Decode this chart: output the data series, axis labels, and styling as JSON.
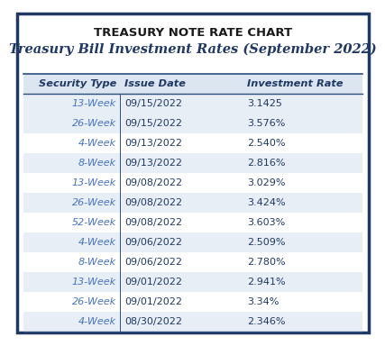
{
  "main_title": "TREASURY NOTE RATE CHART",
  "subtitle": "Treasury Bill Investment Rates (September 2022)",
  "col_headers": [
    "Security Type",
    "Issue Date",
    "Investment Rate"
  ],
  "rows": [
    [
      "13-Week",
      "09/15/2022",
      "3.1425"
    ],
    [
      "26-Week",
      "09/15/2022",
      "3.576%"
    ],
    [
      "4-Week",
      "09/13/2022",
      "2.540%"
    ],
    [
      "8-Week",
      "09/13/2022",
      "2.816%"
    ],
    [
      "13-Week",
      "09/08/2022",
      "3.029%"
    ],
    [
      "26-Week",
      "09/08/2022",
      "3.424%"
    ],
    [
      "52-Week",
      "09/08/2022",
      "3.603%"
    ],
    [
      "4-Week",
      "09/06/2022",
      "2.509%"
    ],
    [
      "8-Week",
      "09/06/2022",
      "2.780%"
    ],
    [
      "13-Week",
      "09/01/2022",
      "2.941%"
    ],
    [
      "26-Week",
      "09/01/2022",
      "3.34%"
    ],
    [
      "4-Week",
      "08/30/2022",
      "2.346%"
    ]
  ],
  "shaded_rows": [
    0,
    1,
    3,
    5,
    7,
    9,
    11
  ],
  "bg_color": "#ffffff",
  "outer_border_color": "#1f3864",
  "header_bg_color": "#dce6f1",
  "shaded_bg_color": "#e8eef5",
  "main_title_color": "#1a1a1a",
  "subtitle_color": "#1f3864",
  "col_header_color": "#1f3864",
  "security_type_color": "#4472c4",
  "data_color": "#1f3864",
  "divider_color": "#2e4d7b"
}
